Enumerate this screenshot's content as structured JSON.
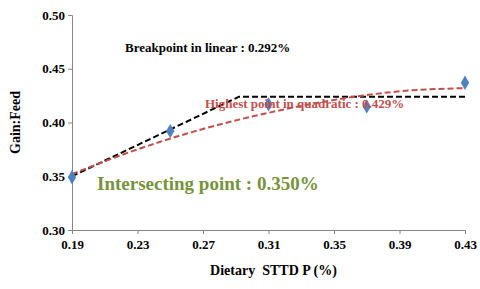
{
  "chart_data": {
    "type": "scatter",
    "x_label": "Dietary  STTD P (%)",
    "y_label": "Gain:Feed",
    "xlim": [
      0.19,
      0.43
    ],
    "xticks": [
      0.19,
      0.23,
      0.27,
      0.31,
      0.35,
      0.39,
      0.43
    ],
    "ylim": [
      0.3,
      0.5
    ],
    "yticks": [
      {
        "value": 0.3,
        "label": "0.30"
      },
      {
        "value": 0.35,
        "label": "0.35"
      },
      {
        "value": 0.4,
        "label": "0.40"
      },
      {
        "value": 0.45,
        "label": "0.45"
      },
      {
        "value": 0.5,
        "label": "0.50"
      }
    ],
    "grid": false,
    "series": [
      {
        "type": "scatter",
        "marker": "diamond",
        "color": "#4f81bd",
        "x": [
          0.19,
          0.25,
          0.31,
          0.37,
          0.43
        ],
        "values": [
          0.349,
          0.392,
          0.417,
          0.415,
          0.437
        ]
      },
      {
        "type": "line",
        "line_style": "dashed",
        "color": "#000000",
        "x": [
          0.19,
          0.292,
          0.43
        ],
        "values": [
          0.35,
          0.424,
          0.424
        ]
      },
      {
        "type": "line",
        "line_style": "dashed",
        "color": "#c0504d",
        "x": [
          0.19,
          0.23,
          0.27,
          0.31,
          0.35,
          0.39,
          0.43
        ],
        "values": [
          0.352,
          0.375,
          0.394,
          0.409,
          0.421,
          0.429,
          0.432
        ]
      }
    ],
    "annotations": [
      {
        "text": "Breakpoint in linear : 0.292%",
        "color": "#000000"
      },
      {
        "text": "Highest point in quadratic : 0.429%",
        "color": "#c0504d"
      },
      {
        "text": "Intersecting point : 0.350%",
        "color": "#77933c"
      }
    ]
  }
}
